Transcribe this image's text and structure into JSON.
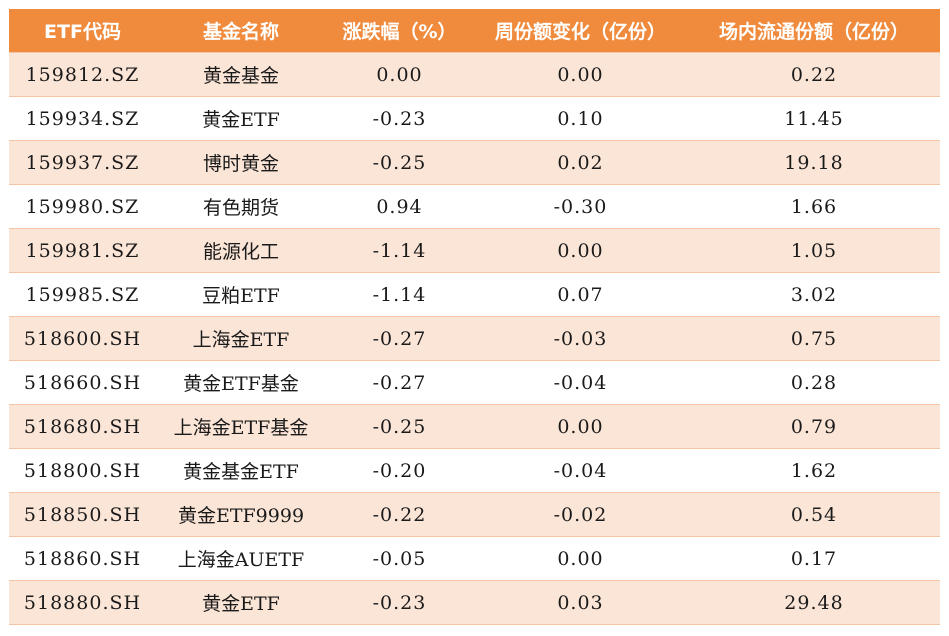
{
  "table": {
    "headers": [
      "ETF代码",
      "基金名称",
      "涨跌幅（%）",
      "周份额变化（亿份）",
      "场内流通份额（亿份）"
    ],
    "rows": [
      [
        "159812.SZ",
        "黄金基金",
        "0.00",
        "0.00",
        "0.22"
      ],
      [
        "159934.SZ",
        "黄金ETF",
        "-0.23",
        "0.10",
        "11.45"
      ],
      [
        "159937.SZ",
        "博时黄金",
        "-0.25",
        "0.02",
        "19.18"
      ],
      [
        "159980.SZ",
        "有色期货",
        "0.94",
        "-0.30",
        "1.66"
      ],
      [
        "159981.SZ",
        "能源化工",
        "-1.14",
        "0.00",
        "1.05"
      ],
      [
        "159985.SZ",
        "豆粕ETF",
        "-1.14",
        "0.07",
        "3.02"
      ],
      [
        "518600.SH",
        "上海金ETF",
        "-0.27",
        "-0.03",
        "0.75"
      ],
      [
        "518660.SH",
        "黄金ETF基金",
        "-0.27",
        "-0.04",
        "0.28"
      ],
      [
        "518680.SH",
        "上海金ETF基金",
        "-0.25",
        "0.00",
        "0.79"
      ],
      [
        "518800.SH",
        "黄金基金ETF",
        "-0.20",
        "-0.04",
        "1.62"
      ],
      [
        "518850.SH",
        "黄金ETF9999",
        "-0.22",
        "-0.02",
        "0.54"
      ],
      [
        "518860.SH",
        "上海金AUETF",
        "-0.05",
        "0.00",
        "0.17"
      ],
      [
        "518880.SH",
        "黄金ETF",
        "-0.23",
        "0.03",
        "29.48"
      ]
    ]
  },
  "colors": {
    "header_bg": "#f08a3c",
    "header_text": "#ffffff",
    "band_odd": "#fbe5d7",
    "band_even": "#ffffff",
    "row_border": "#f4c6a6"
  }
}
